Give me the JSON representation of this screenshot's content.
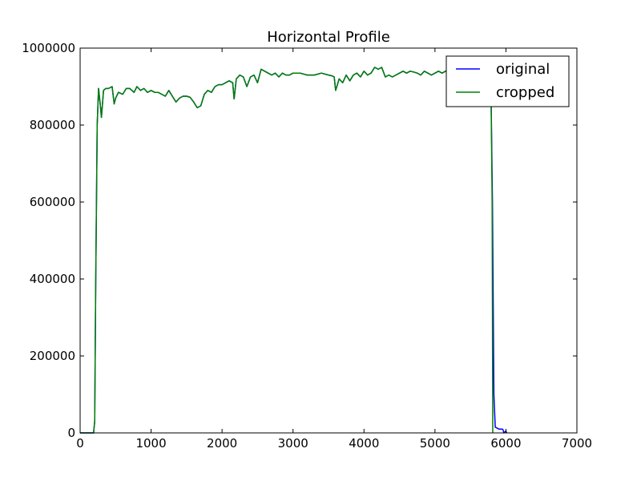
{
  "chart_data": {
    "type": "line",
    "title": "Horizontal Profile",
    "xlabel": "",
    "ylabel": "",
    "xlim": [
      0,
      7000
    ],
    "ylim": [
      0,
      1000000
    ],
    "xticks": [
      0,
      1000,
      2000,
      3000,
      4000,
      5000,
      6000,
      7000
    ],
    "yticks": [
      0,
      200000,
      400000,
      600000,
      800000,
      1000000
    ],
    "xtick_labels": [
      "0",
      "1000",
      "2000",
      "3000",
      "4000",
      "5000",
      "6000",
      "7000"
    ],
    "ytick_labels": [
      "0",
      "200000",
      "400000",
      "600000",
      "800000",
      "1000000"
    ],
    "grid": false,
    "legend_position": "top-right",
    "series": [
      {
        "name": "original",
        "color": "#0000ff",
        "x": [
          0,
          150,
          190,
          205,
          220,
          240,
          260,
          280,
          300,
          330,
          360,
          400,
          450,
          480,
          500,
          540,
          600,
          650,
          700,
          760,
          800,
          850,
          900,
          950,
          1000,
          1050,
          1100,
          1150,
          1200,
          1250,
          1300,
          1350,
          1400,
          1450,
          1500,
          1550,
          1600,
          1650,
          1700,
          1750,
          1800,
          1850,
          1900,
          1950,
          2000,
          2050,
          2100,
          2150,
          2170,
          2200,
          2250,
          2300,
          2350,
          2400,
          2450,
          2500,
          2550,
          2600,
          2650,
          2700,
          2750,
          2800,
          2850,
          2900,
          2950,
          3000,
          3100,
          3200,
          3300,
          3400,
          3500,
          3550,
          3580,
          3600,
          3650,
          3700,
          3750,
          3800,
          3850,
          3900,
          3950,
          4000,
          4050,
          4100,
          4150,
          4200,
          4250,
          4300,
          4350,
          4400,
          4450,
          4500,
          4550,
          4600,
          4650,
          4700,
          4750,
          4800,
          4850,
          4900,
          4950,
          5000,
          5050,
          5100,
          5150,
          5200,
          5300,
          5400,
          5500,
          5600,
          5700,
          5750,
          5790,
          5810,
          5830,
          5850,
          5900,
          5950,
          5960,
          5970,
          6000,
          6010
        ],
        "y": [
          0,
          0,
          0,
          30000,
          400000,
          800000,
          895000,
          860000,
          820000,
          890000,
          895000,
          895000,
          900000,
          855000,
          870000,
          885000,
          880000,
          895000,
          895000,
          885000,
          900000,
          890000,
          895000,
          885000,
          890000,
          885000,
          885000,
          880000,
          875000,
          890000,
          875000,
          860000,
          870000,
          875000,
          875000,
          872000,
          860000,
          845000,
          850000,
          880000,
          890000,
          885000,
          900000,
          905000,
          905000,
          910000,
          915000,
          910000,
          868000,
          920000,
          930000,
          925000,
          900000,
          925000,
          930000,
          910000,
          945000,
          940000,
          935000,
          930000,
          935000,
          925000,
          935000,
          930000,
          930000,
          935000,
          935000,
          930000,
          930000,
          935000,
          930000,
          928000,
          925000,
          890000,
          920000,
          910000,
          930000,
          915000,
          930000,
          935000,
          925000,
          940000,
          930000,
          935000,
          950000,
          945000,
          950000,
          925000,
          930000,
          925000,
          930000,
          935000,
          940000,
          935000,
          940000,
          938000,
          935000,
          930000,
          940000,
          935000,
          930000,
          935000,
          940000,
          935000,
          940000,
          945000,
          940000,
          945000,
          945000,
          940000,
          945000,
          940000,
          890000,
          600000,
          100000,
          15000,
          10000,
          10000,
          8000,
          0,
          5000,
          0
        ]
      },
      {
        "name": "cropped",
        "color": "#008000",
        "x": [
          0,
          150,
          190,
          205,
          220,
          240,
          260,
          280,
          300,
          330,
          360,
          400,
          450,
          480,
          500,
          540,
          600,
          650,
          700,
          760,
          800,
          850,
          900,
          950,
          1000,
          1050,
          1100,
          1150,
          1200,
          1250,
          1300,
          1350,
          1400,
          1450,
          1500,
          1550,
          1600,
          1650,
          1700,
          1750,
          1800,
          1850,
          1900,
          1950,
          2000,
          2050,
          2100,
          2150,
          2170,
          2200,
          2250,
          2300,
          2350,
          2400,
          2450,
          2500,
          2550,
          2600,
          2650,
          2700,
          2750,
          2800,
          2850,
          2900,
          2950,
          3000,
          3100,
          3200,
          3300,
          3400,
          3500,
          3550,
          3580,
          3600,
          3650,
          3700,
          3750,
          3800,
          3850,
          3900,
          3950,
          4000,
          4050,
          4100,
          4150,
          4200,
          4250,
          4300,
          4350,
          4400,
          4450,
          4500,
          4550,
          4600,
          4650,
          4700,
          4750,
          4800,
          4850,
          4900,
          4950,
          5000,
          5050,
          5100,
          5150,
          5200,
          5300,
          5400,
          5500,
          5600,
          5700,
          5750,
          5790,
          5805,
          5815
        ],
        "y": [
          0,
          0,
          0,
          30000,
          400000,
          800000,
          895000,
          860000,
          820000,
          890000,
          895000,
          895000,
          900000,
          855000,
          870000,
          885000,
          880000,
          895000,
          895000,
          885000,
          900000,
          890000,
          895000,
          885000,
          890000,
          885000,
          885000,
          880000,
          875000,
          890000,
          875000,
          860000,
          870000,
          875000,
          875000,
          872000,
          860000,
          845000,
          850000,
          880000,
          890000,
          885000,
          900000,
          905000,
          905000,
          910000,
          915000,
          910000,
          868000,
          920000,
          930000,
          925000,
          900000,
          925000,
          930000,
          910000,
          945000,
          940000,
          935000,
          930000,
          935000,
          925000,
          935000,
          930000,
          930000,
          935000,
          935000,
          930000,
          930000,
          935000,
          930000,
          928000,
          925000,
          890000,
          920000,
          910000,
          930000,
          915000,
          930000,
          935000,
          925000,
          940000,
          930000,
          935000,
          950000,
          945000,
          950000,
          925000,
          930000,
          925000,
          930000,
          935000,
          940000,
          935000,
          940000,
          938000,
          935000,
          930000,
          940000,
          935000,
          930000,
          935000,
          940000,
          935000,
          940000,
          945000,
          940000,
          945000,
          945000,
          940000,
          945000,
          940000,
          890000,
          600000,
          0
        ]
      }
    ]
  }
}
